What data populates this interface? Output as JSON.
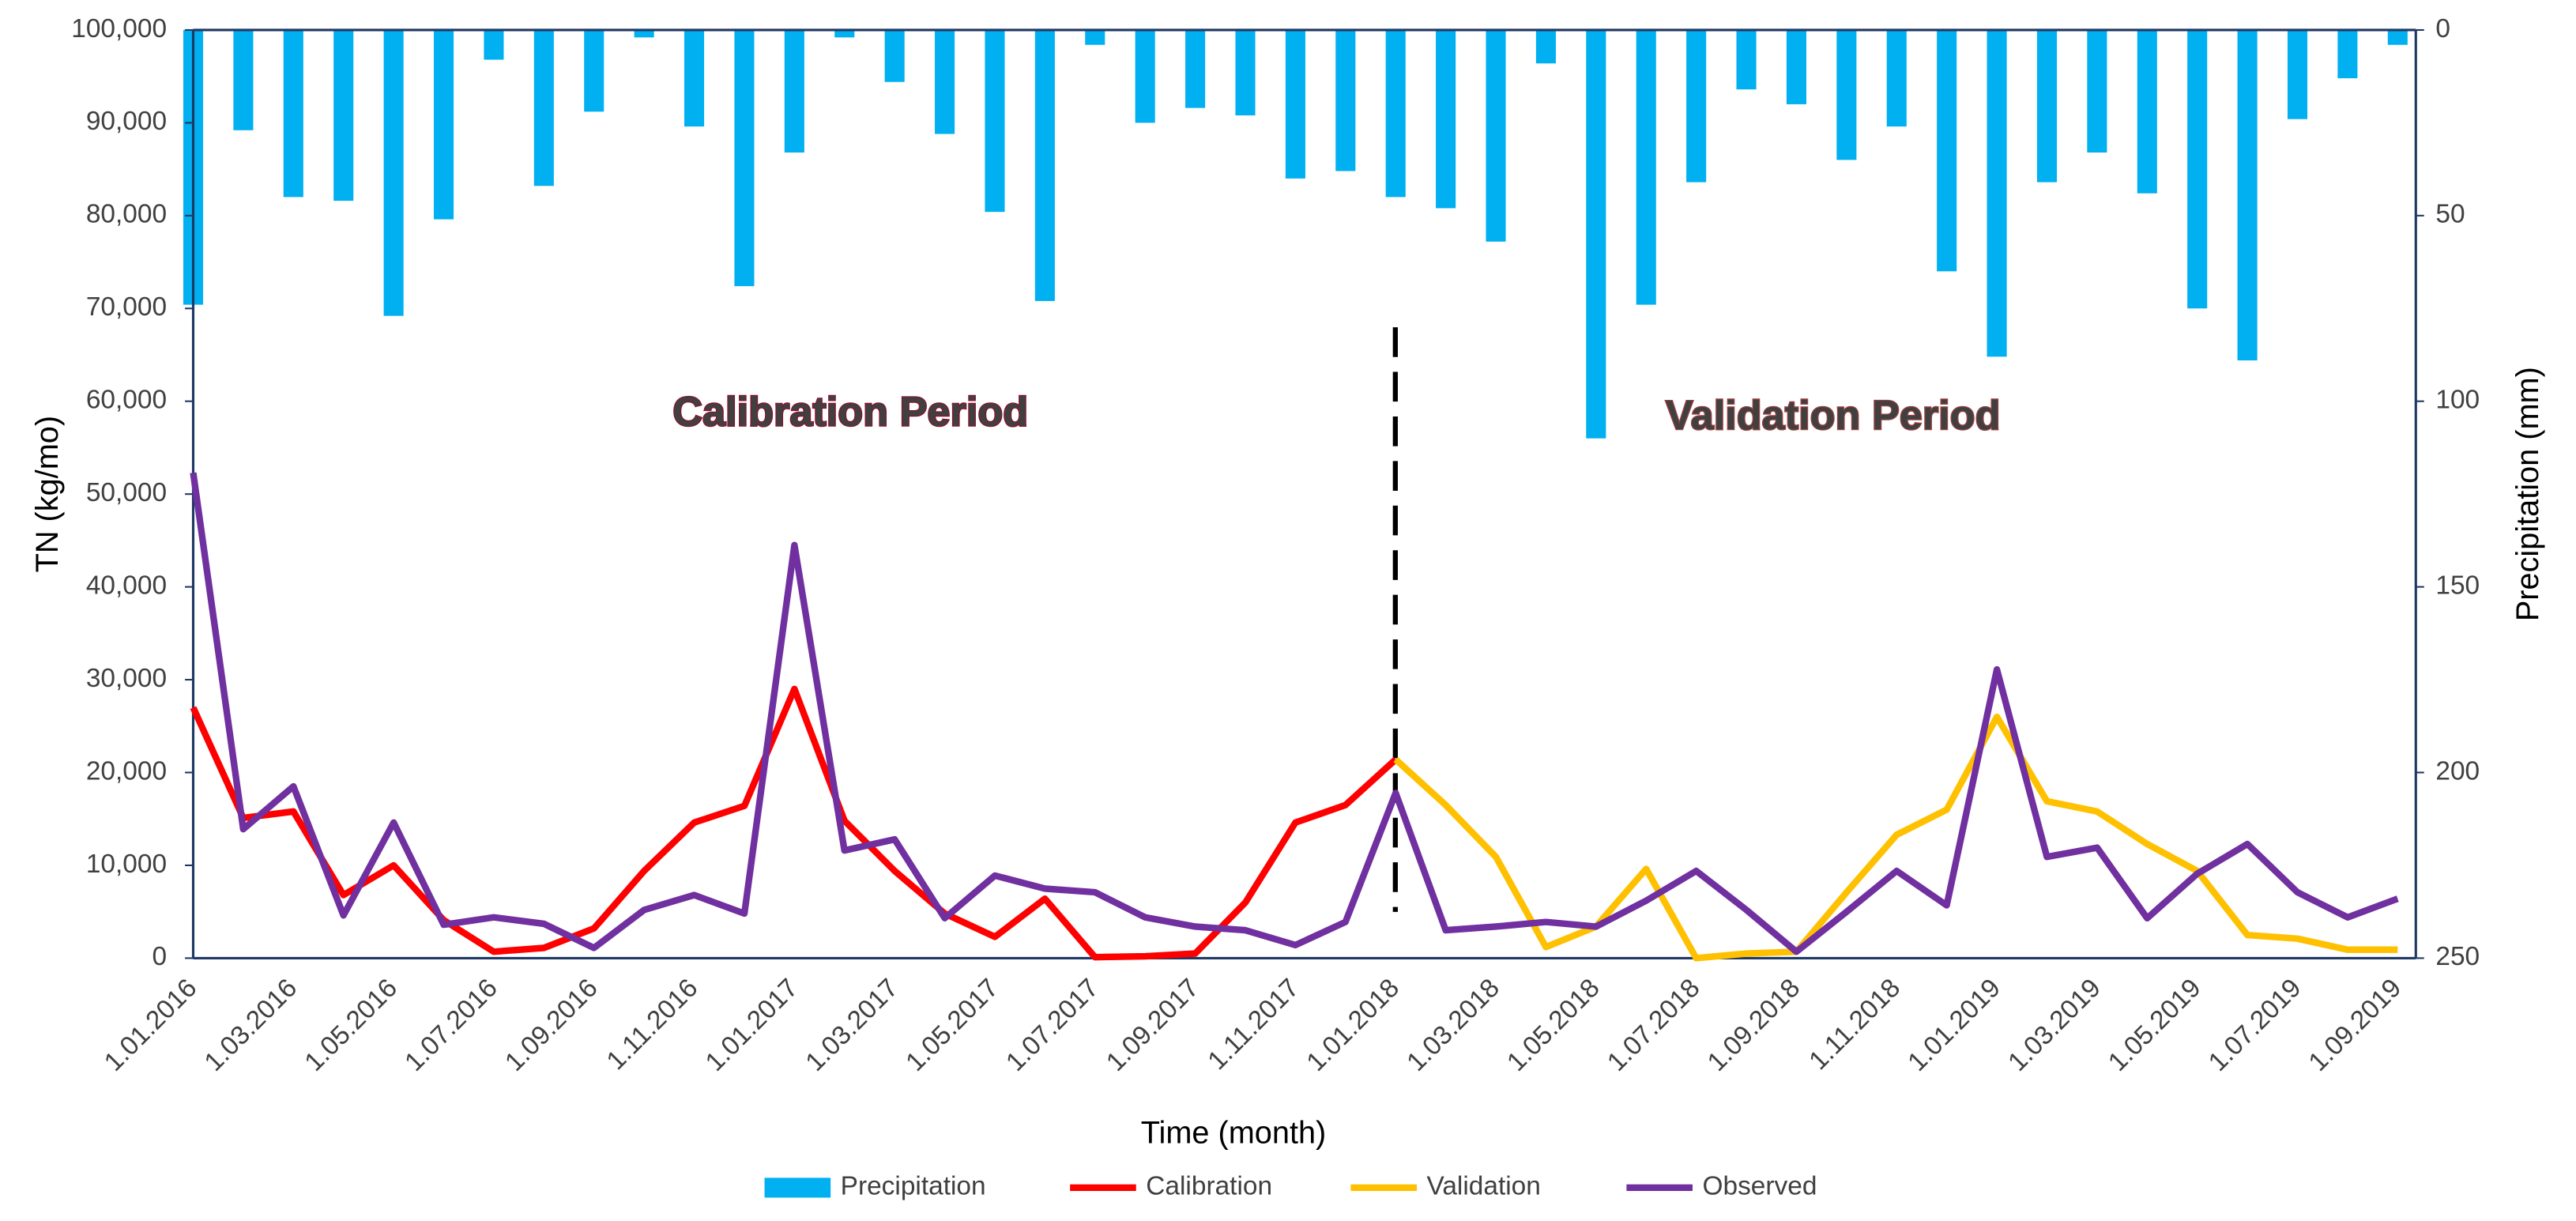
{
  "chart_data": {
    "type": "combo",
    "y_label": "TN (kg/mo)",
    "y2_label": "Precipitation (mm)",
    "x_label": "Time (month)",
    "annotations": [
      "Calibration Period",
      "Validation Period"
    ],
    "categories": [
      "1.01.2016",
      null,
      "1.03.2016",
      null,
      "1.05.2016",
      null,
      "1.07.2016",
      null,
      "1.09.2016",
      null,
      "1.11.2016",
      null,
      "1.01.2017",
      null,
      "1.03.2017",
      null,
      "1.05.2017",
      null,
      "1.07.2017",
      null,
      "1.09.2017",
      null,
      "1.11.2017",
      null,
      "1.01.2018",
      null,
      "1.03.2018",
      null,
      "1.05.2018",
      null,
      "1.07.2018",
      null,
      "1.09.2018",
      null,
      "1.11.2018",
      null,
      "1.01.2019",
      null,
      "1.03.2019",
      null,
      "1.05.2019",
      null,
      "1.07.2019",
      null,
      "1.09.2019"
    ],
    "ylim": [
      0,
      100000
    ],
    "yticks": [
      0,
      {
        "value": 10000,
        "label": "10,000"
      },
      {
        "value": 20000,
        "label": "20,000"
      },
      {
        "value": 30000,
        "label": "30,000"
      },
      {
        "value": 40000,
        "label": "40,000"
      },
      {
        "value": 50000,
        "label": "50,000"
      },
      {
        "value": 60000,
        "label": "60,000"
      },
      {
        "value": 70000,
        "label": "70,000"
      },
      {
        "value": 80000,
        "label": "80,000"
      },
      {
        "value": 90000,
        "label": "90,000"
      },
      {
        "value": 100000,
        "label": "100,000"
      }
    ],
    "y2lim": [
      250,
      0
    ],
    "y2ticks": [
      0,
      50,
      100,
      150,
      200,
      250
    ],
    "grid": false,
    "legend": "bottom",
    "series": [
      {
        "name": "Precipitation",
        "type": "bar",
        "axis": "y2",
        "color": "#00b0f0",
        "values": [
          74,
          27,
          45,
          46,
          77,
          51,
          8,
          42,
          22,
          2,
          26,
          69,
          33,
          2,
          14,
          28,
          49,
          73,
          4,
          25,
          21,
          23,
          40,
          38,
          45,
          48,
          57,
          9,
          110,
          74,
          41,
          16,
          20,
          35,
          26,
          65,
          88,
          41,
          33,
          44,
          75,
          89,
          24,
          13,
          4
        ]
      },
      {
        "name": "Calibration",
        "type": "line",
        "color": "#ff0000",
        "values": [
          27000,
          15100,
          15800,
          6800,
          10000,
          4100,
          700,
          1100,
          3200,
          9400,
          14600,
          16400,
          29000,
          14800,
          9400,
          4800,
          2300,
          6400,
          100,
          200,
          500,
          6000,
          14600,
          16500,
          21400,
          null,
          null,
          null,
          null,
          null,
          null,
          null,
          null,
          null,
          null,
          null,
          null,
          null,
          null,
          null,
          null,
          null,
          null,
          null,
          null
        ]
      },
      {
        "name": "Validation",
        "type": "line",
        "color": "#ffc000",
        "values": [
          null,
          null,
          null,
          null,
          null,
          null,
          null,
          null,
          null,
          null,
          null,
          null,
          null,
          null,
          null,
          null,
          null,
          null,
          null,
          null,
          null,
          null,
          null,
          null,
          21400,
          16500,
          10900,
          1200,
          3400,
          9600,
          0,
          500,
          700,
          7100,
          13300,
          16000,
          26000,
          16900,
          15800,
          12300,
          9400,
          2500,
          2100,
          900,
          900
        ]
      },
      {
        "name": "Observed",
        "type": "line",
        "color": "#7030a0",
        "values": [
          52300,
          13900,
          18500,
          4600,
          14600,
          3600,
          4400,
          3700,
          1100,
          5200,
          6800,
          4800,
          44500,
          11600,
          12800,
          4300,
          8900,
          7500,
          7100,
          4400,
          3400,
          3000,
          1400,
          3900,
          17800,
          3000,
          3400,
          3900,
          3400,
          6200,
          9400,
          5200,
          700,
          5000,
          9400,
          5700,
          31100,
          10900,
          11900,
          4300,
          9100,
          12300,
          7100,
          4400,
          6400
        ]
      }
    ]
  }
}
